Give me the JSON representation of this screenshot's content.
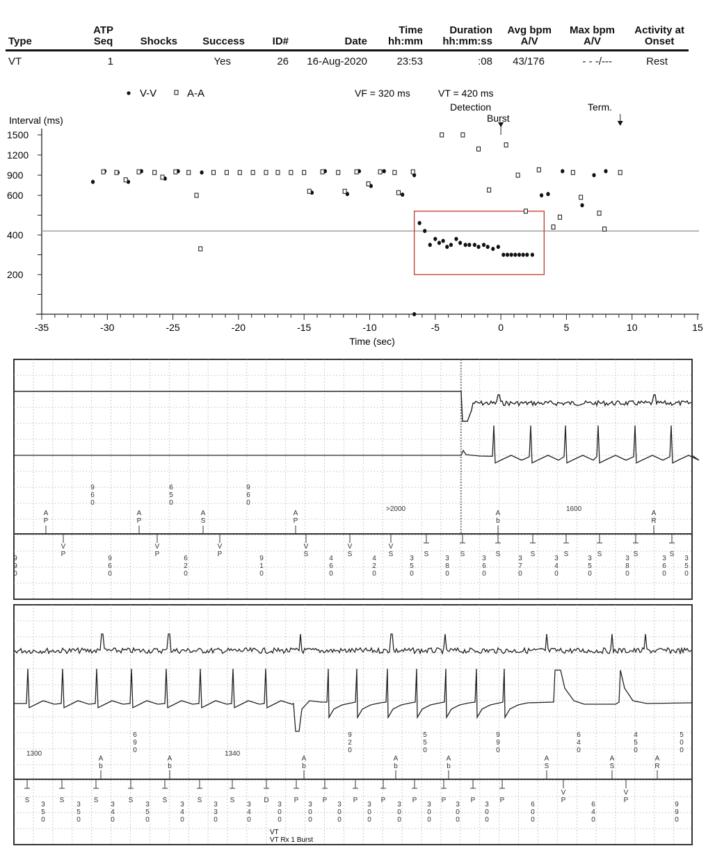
{
  "table": {
    "headers": [
      {
        "line1": "",
        "line2": "Type"
      },
      {
        "line1": "ATP",
        "line2": "Seq"
      },
      {
        "line1": "",
        "line2": "Shocks"
      },
      {
        "line1": "",
        "line2": "Success"
      },
      {
        "line1": "",
        "line2": "ID#"
      },
      {
        "line1": "",
        "line2": "Date"
      },
      {
        "line1": "Time",
        "line2": "hh:mm"
      },
      {
        "line1": "Duration",
        "line2": "hh:mm:ss"
      },
      {
        "line1": "Avg bpm",
        "line2": "A/V"
      },
      {
        "line1": "Max bpm",
        "line2": "A/V"
      },
      {
        "line1": "Activity at",
        "line2": "Onset"
      }
    ],
    "row": [
      "VT",
      "1",
      "",
      "Yes",
      "26",
      "16-Aug-2020",
      "23:53",
      ":08",
      "43/176",
      "- - -/---",
      "Rest"
    ]
  },
  "chart_data": {
    "type": "scatter",
    "xlabel": "Time (sec)",
    "ylabel": "Interval (ms)",
    "xlim": [
      -35,
      15
    ],
    "xticks": [
      -35,
      -30,
      -25,
      -20,
      -15,
      -10,
      -5,
      0,
      5,
      10,
      15
    ],
    "yticks": [
      200,
      400,
      600,
      900,
      1200,
      1500
    ],
    "y_scale": "piecewise (200 ms steps below 600, 300 ms steps above)",
    "grid": false,
    "legend_position": "top-left",
    "vf_label": "VF = 320 ms",
    "vt_label": "VT = 420 ms",
    "vt_threshold_ms": 420,
    "events": {
      "detection": "Detection",
      "burst": "Burst",
      "term": "Term."
    },
    "event_times": {
      "burst": 0,
      "term": 9.1
    },
    "highlight_box": {
      "x": [
        -6.6,
        3.3
      ],
      "y": [
        200,
        520
      ],
      "color": "#c0392b"
    },
    "series": [
      {
        "name": "V-V",
        "marker": "filled-circle",
        "points": [
          [
            -31.1,
            800
          ],
          [
            -30.2,
            960
          ],
          [
            -29.2,
            940
          ],
          [
            -28.4,
            800
          ],
          [
            -27.4,
            960
          ],
          [
            -26.4,
            940
          ],
          [
            -25.6,
            850
          ],
          [
            -24.6,
            960
          ],
          [
            -23.8,
            940
          ],
          [
            -22.8,
            940
          ],
          [
            -21.9,
            940
          ],
          [
            -20.9,
            940
          ],
          [
            -19.9,
            940
          ],
          [
            -18.9,
            940
          ],
          [
            -17.9,
            940
          ],
          [
            -17.0,
            940
          ],
          [
            -16.0,
            940
          ],
          [
            -15.0,
            940
          ],
          [
            -14.4,
            640
          ],
          [
            -13.4,
            960
          ],
          [
            -12.4,
            940
          ],
          [
            -11.7,
            620
          ],
          [
            -10.8,
            960
          ],
          [
            -9.9,
            740
          ],
          [
            -8.9,
            960
          ],
          [
            -8.1,
            940
          ],
          [
            -7.5,
            610
          ],
          [
            -6.6,
            900
          ],
          [
            -6.6,
            0
          ],
          [
            -6.2,
            460
          ],
          [
            -5.8,
            420
          ],
          [
            -5.4,
            350
          ],
          [
            -5.0,
            380
          ],
          [
            -4.7,
            360
          ],
          [
            -4.4,
            370
          ],
          [
            -4.1,
            340
          ],
          [
            -3.8,
            350
          ],
          [
            -3.4,
            380
          ],
          [
            -3.1,
            360
          ],
          [
            -2.7,
            350
          ],
          [
            -2.4,
            350
          ],
          [
            -2.0,
            350
          ],
          [
            -1.7,
            340
          ],
          [
            -1.3,
            350
          ],
          [
            -1.0,
            340
          ],
          [
            -0.6,
            330
          ],
          [
            -0.2,
            340
          ],
          [
            0.2,
            300
          ],
          [
            0.5,
            300
          ],
          [
            0.8,
            300
          ],
          [
            1.1,
            300
          ],
          [
            1.4,
            300
          ],
          [
            1.7,
            300
          ],
          [
            2.0,
            300
          ],
          [
            2.4,
            300
          ],
          [
            3.1,
            600
          ],
          [
            3.6,
            620
          ],
          [
            4.7,
            960
          ],
          [
            5.5,
            940
          ],
          [
            6.2,
            550
          ],
          [
            7.1,
            900
          ],
          [
            8.0,
            960
          ],
          [
            9.1,
            940
          ]
        ]
      },
      {
        "name": "A-A",
        "marker": "open-square",
        "points": [
          [
            -30.3,
            950
          ],
          [
            -29.3,
            940
          ],
          [
            -28.6,
            830
          ],
          [
            -27.6,
            950
          ],
          [
            -26.4,
            940
          ],
          [
            -25.8,
            870
          ],
          [
            -24.8,
            950
          ],
          [
            -23.8,
            940
          ],
          [
            -23.2,
            600
          ],
          [
            -22.9,
            330
          ],
          [
            -21.9,
            940
          ],
          [
            -20.9,
            940
          ],
          [
            -19.9,
            940
          ],
          [
            -18.9,
            940
          ],
          [
            -17.9,
            940
          ],
          [
            -17.0,
            940
          ],
          [
            -16.0,
            940
          ],
          [
            -15.0,
            940
          ],
          [
            -14.6,
            660
          ],
          [
            -13.6,
            950
          ],
          [
            -12.4,
            940
          ],
          [
            -11.9,
            660
          ],
          [
            -11.0,
            950
          ],
          [
            -10.1,
            770
          ],
          [
            -9.2,
            950
          ],
          [
            -8.1,
            940
          ],
          [
            -7.8,
            640
          ],
          [
            -6.7,
            950
          ],
          [
            -4.5,
            1500
          ],
          [
            -2.9,
            1500
          ],
          [
            -1.7,
            1290
          ],
          [
            -0.9,
            680
          ],
          [
            0.4,
            1350
          ],
          [
            1.3,
            900
          ],
          [
            1.9,
            520
          ],
          [
            2.9,
            980
          ],
          [
            4.0,
            440
          ],
          [
            4.5,
            490
          ],
          [
            5.5,
            940
          ],
          [
            6.1,
            590
          ],
          [
            7.5,
            510
          ],
          [
            7.9,
            430
          ],
          [
            9.1,
            940
          ]
        ]
      }
    ]
  },
  "strip1": {
    "atrial_markers": [
      "AP",
      "AP",
      "AS",
      "AP",
      "Ab",
      "AR"
    ],
    "atrial_intervals": [
      "960",
      "650",
      "960"
    ],
    "atrial_text": [
      ">2000",
      "1600"
    ],
    "ventricular_markers": [
      "VP",
      "VP",
      "VP",
      "VS",
      "VS",
      "VS",
      "TS",
      "TS",
      "TS",
      "TS",
      "TS",
      "TS",
      "TS",
      "TS"
    ],
    "ventricular_intervals": [
      "990",
      "960",
      "620",
      "910",
      "460",
      "420",
      "350",
      "380",
      "360",
      "370",
      "340",
      "350",
      "380",
      "360",
      "350"
    ]
  },
  "strip2": {
    "atrial_text": [
      "1300",
      "1340"
    ],
    "atrial_markers": [
      "Ab",
      "Ab",
      "Ab",
      "Ab",
      "Ab",
      "AS",
      "AS",
      "AR"
    ],
    "atrial_intervals": [
      "690",
      "920",
      "550",
      "990",
      "640",
      "450",
      "500"
    ],
    "ventricular_markers": [
      "TS",
      "TS",
      "TS",
      "TS",
      "TS",
      "TS",
      "TS",
      "TD",
      "TP",
      "TP",
      "TP",
      "TP",
      "TP",
      "TP",
      "TP",
      "TP",
      "VP",
      "VP"
    ],
    "ventricular_intervals": [
      "350",
      "350",
      "340",
      "350",
      "340",
      "330",
      "340",
      "300",
      "300",
      "300",
      "300",
      "300",
      "300",
      "300",
      "300",
      "600",
      "640",
      "990"
    ],
    "annotation_line1": "VT",
    "annotation_line2": "VT Rx 1 Burst"
  }
}
